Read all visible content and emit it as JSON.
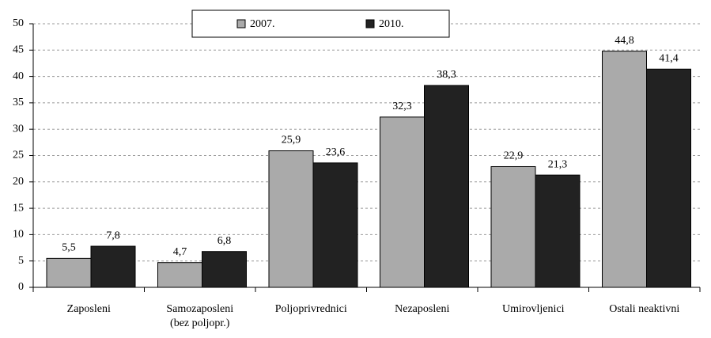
{
  "chart_data": {
    "type": "bar",
    "categories": [
      "Zaposleni",
      "Samozaposleni\n(bez poljopr.)",
      "Poljoprivrednici",
      "Nezaposleni",
      "Umirovljenici",
      "Ostali neaktivni"
    ],
    "series": [
      {
        "name": "2007.",
        "color": "#aaaaaa",
        "values": [
          5.5,
          4.7,
          25.9,
          32.3,
          22.9,
          44.8
        ],
        "value_labels": [
          "5,5",
          "4,7",
          "25,9",
          "32,3",
          "22,9",
          "44,8"
        ]
      },
      {
        "name": "2010.",
        "color": "#222222",
        "values": [
          7.8,
          6.8,
          23.6,
          38.3,
          21.3,
          41.4
        ],
        "value_labels": [
          "7,8",
          "6,8",
          "23,6",
          "38,3",
          "21,3",
          "41,4"
        ]
      }
    ],
    "ylim": [
      0,
      50
    ],
    "yticks": [
      0,
      5,
      10,
      15,
      20,
      25,
      30,
      35,
      40,
      45,
      50
    ],
    "grid": true,
    "legend": "top"
  }
}
